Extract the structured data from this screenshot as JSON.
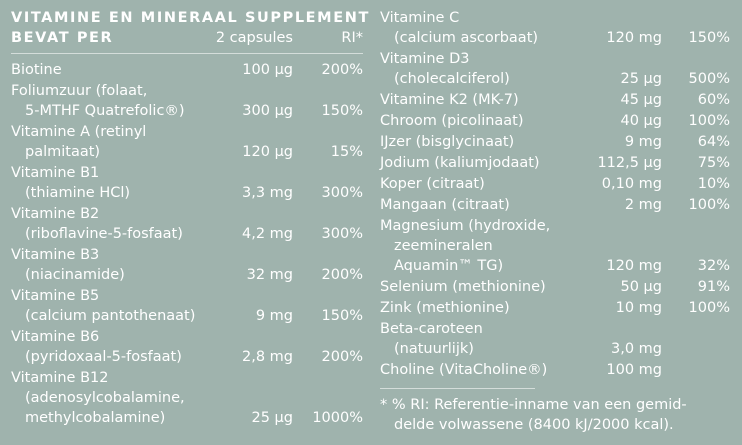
{
  "title_line1": "VITAMINE EN MINERAAL SUPPLEMENT",
  "title_line2": "BEVAT PER",
  "header_amount": "2 capsules",
  "header_ri": "RI*",
  "left": [
    {
      "lines": [
        "Biotine"
      ],
      "amount": "100 µg",
      "ri": "200%"
    },
    {
      "lines": [
        "Foliumzuur (folaat,",
        "5-MTHF Quatrefolic®)"
      ],
      "amount": "300 µg",
      "ri": "150%"
    },
    {
      "lines": [
        "Vitamine A (retinyl",
        "palmitaat)"
      ],
      "amount": "120 µg",
      "ri": "15%"
    },
    {
      "lines": [
        "Vitamine B1",
        "(thiamine HCl)"
      ],
      "amount": "3,3 mg",
      "ri": "300%"
    },
    {
      "lines": [
        "Vitamine B2",
        "(riboflavine-5-fosfaat)"
      ],
      "amount": "4,2 mg",
      "ri": "300%"
    },
    {
      "lines": [
        "Vitamine B3",
        "(niacinamide)"
      ],
      "amount": "32 mg",
      "ri": "200%"
    },
    {
      "lines": [
        "Vitamine B5",
        "(calcium pantothenaat)"
      ],
      "amount": "9 mg",
      "ri": "150%"
    },
    {
      "lines": [
        "Vitamine B6",
        "(pyridoxaal-5-fosfaat)"
      ],
      "amount": "2,8 mg",
      "ri": "200%"
    },
    {
      "lines": [
        "Vitamine B12",
        "(adenosylcobalamine,",
        "methylcobalamine)"
      ],
      "amount": "25 µg",
      "ri": "1000%"
    }
  ],
  "right": [
    {
      "lines": [
        "Vitamine C",
        "(calcium ascorbaat)"
      ],
      "amount": "120 mg",
      "ri": "150%"
    },
    {
      "lines": [
        "Vitamine D3",
        "(cholecalciferol)"
      ],
      "amount": "25 µg",
      "ri": "500%"
    },
    {
      "lines": [
        "Vitamine K2 (MK-7)"
      ],
      "amount": "45 µg",
      "ri": "60%"
    },
    {
      "lines": [
        "Chroom (picolinaat)"
      ],
      "amount": "40 µg",
      "ri": "100%"
    },
    {
      "lines": [
        "IJzer (bisglycinaat)"
      ],
      "amount": "9 mg",
      "ri": "64%"
    },
    {
      "lines": [
        "Jodium (kaliumjodaat)"
      ],
      "amount": "112,5 µg",
      "ri": "75%"
    },
    {
      "lines": [
        "Koper (citraat)"
      ],
      "amount": "0,10 mg",
      "ri": "10%"
    },
    {
      "lines": [
        "Mangaan (citraat)"
      ],
      "amount": "2 mg",
      "ri": "100%"
    },
    {
      "lines": [
        "Magnesium (hydroxide,",
        "zeemineralen",
        "Aquamin™ TG)"
      ],
      "amount": "120 mg",
      "ri": "32%"
    },
    {
      "lines": [
        "Selenium (methionine)"
      ],
      "amount": "50 µg",
      "ri": "91%"
    },
    {
      "lines": [
        "Zink (methionine)"
      ],
      "amount": "10 mg",
      "ri": "100%"
    },
    {
      "lines": [
        "Beta-caroteen",
        "(natuurlijk)"
      ],
      "amount": "3,0 mg",
      "ri": ""
    },
    {
      "lines": [
        "Choline (VitaCholine®)"
      ],
      "amount": "100 mg",
      "ri": ""
    }
  ],
  "footnote_line1": "* % RI: Referentie-inname van een gemid-",
  "footnote_line2": "delde volwassene (8400 kJ/2000 kcal)."
}
